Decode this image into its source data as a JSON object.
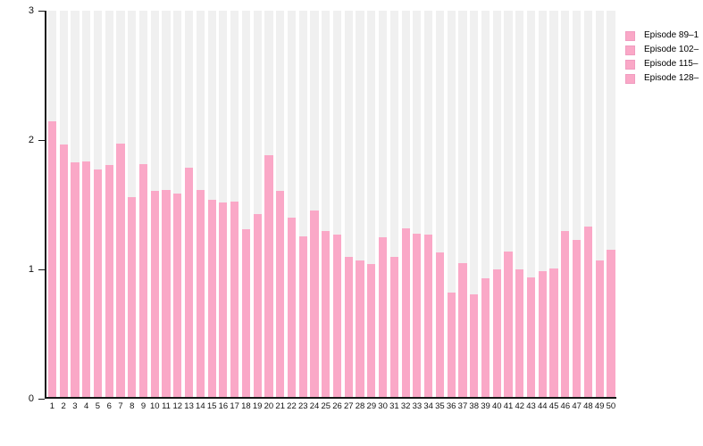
{
  "chart_data": {
    "type": "bar",
    "title": "",
    "xlabel": "",
    "ylabel": "",
    "ylim": [
      0,
      3
    ],
    "yticks": [
      0,
      1,
      2,
      3
    ],
    "grid": "none",
    "background_bars": true,
    "legend_position": "top-right-clipped",
    "categories": [
      "1",
      "2",
      "3",
      "4",
      "5",
      "6",
      "7",
      "8",
      "9",
      "10",
      "11",
      "12",
      "13",
      "14",
      "15",
      "16",
      "17",
      "18",
      "19",
      "20",
      "21",
      "22",
      "23",
      "24",
      "25",
      "26",
      "27",
      "28",
      "29",
      "30",
      "31",
      "32",
      "33",
      "34",
      "35",
      "36",
      "37",
      "38",
      "39",
      "40",
      "41",
      "42",
      "43",
      "44",
      "45",
      "46",
      "47",
      "48",
      "49",
      "50"
    ],
    "values": [
      2.14,
      1.96,
      1.82,
      1.83,
      1.77,
      1.8,
      1.97,
      1.55,
      1.81,
      1.6,
      1.61,
      1.58,
      1.78,
      1.61,
      1.53,
      1.51,
      1.52,
      1.3,
      1.42,
      1.88,
      1.6,
      1.39,
      1.25,
      1.45,
      1.29,
      1.26,
      1.09,
      1.06,
      1.03,
      1.24,
      1.09,
      1.31,
      1.27,
      1.26,
      1.12,
      0.81,
      1.04,
      0.8,
      0.92,
      0.99,
      1.13,
      0.99,
      0.93,
      0.98,
      1.0,
      1.29,
      1.22,
      1.32,
      1.06,
      1.14
    ],
    "legend": {
      "entries": [
        {
          "label": "Episode 89–1",
          "color": "#faa8c7"
        },
        {
          "label": "Episode 102–",
          "color": "#faa8c7"
        },
        {
          "label": "Episode 115–",
          "color": "#faa8c7"
        },
        {
          "label": "Episode 128–",
          "color": "#faa8c7"
        }
      ]
    },
    "colors": {
      "bar": "#faa8c7",
      "bar_background": "#f0f0f0",
      "axis": "#161616",
      "text": "#111111"
    }
  }
}
